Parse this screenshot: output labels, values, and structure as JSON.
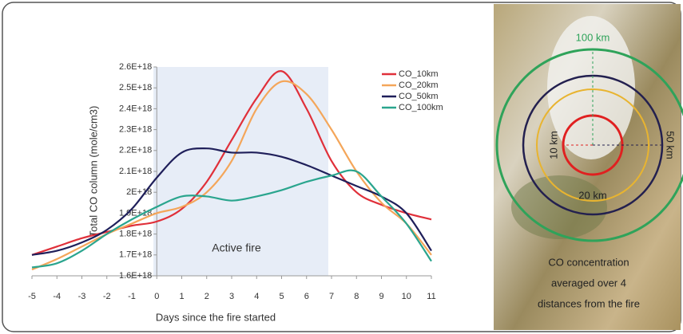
{
  "chart_data": {
    "type": "line",
    "ylabel": "Total CO column (mole/cm3)",
    "xlabel": "Days  since the fire started",
    "annotation": "Active fire",
    "x": [
      -5,
      -4,
      -3,
      -2,
      -1,
      0,
      1,
      2,
      3,
      4,
      5,
      6,
      7,
      8,
      9,
      10,
      11
    ],
    "xlim": [
      -5,
      11
    ],
    "xticks": [
      -5,
      -4,
      -3,
      -2,
      -1,
      0,
      1,
      2,
      3,
      4,
      5,
      6,
      7,
      8,
      9,
      10,
      11
    ],
    "ylim": [
      1.6e+18,
      2.6e+18
    ],
    "yticks": [
      {
        "value": 1.6e+18,
        "label": "1.6E+18"
      },
      {
        "value": 1.7e+18,
        "label": "1.7E+18"
      },
      {
        "value": 1.8e+18,
        "label": "1.8E+18"
      },
      {
        "value": 1.9e+18,
        "label": "1.9E+18"
      },
      {
        "value": 2e+18,
        "label": "2E+18"
      },
      {
        "value": 2.1e+18,
        "label": "2.1E+18"
      },
      {
        "value": 2.2e+18,
        "label": "2.2E+18"
      },
      {
        "value": 2.3e+18,
        "label": "2.3E+18"
      },
      {
        "value": 2.4e+18,
        "label": "2.4E+18"
      },
      {
        "value": 2.5e+18,
        "label": "2.5E+18"
      },
      {
        "value": 2.6e+18,
        "label": "2.6E+18"
      }
    ],
    "legend": "top-right",
    "series": [
      {
        "name": "CO_10km",
        "color": "#e0303a",
        "values": [
          1.7e+18,
          1.74e+18,
          1.78e+18,
          1.81e+18,
          1.84e+18,
          1.86e+18,
          1.92e+18,
          2.05e+18,
          2.25e+18,
          2.45e+18,
          2.58e+18,
          2.4e+18,
          2.15e+18,
          2e+18,
          1.94e+18,
          1.9e+18,
          1.87e+18
        ]
      },
      {
        "name": "CO_20km",
        "color": "#f4a65a",
        "values": [
          1.63e+18,
          1.68e+18,
          1.74e+18,
          1.8e+18,
          1.85e+18,
          1.9e+18,
          1.93e+18,
          2e+18,
          2.15e+18,
          2.4e+18,
          2.53e+18,
          2.47e+18,
          2.3e+18,
          2.1e+18,
          1.95e+18,
          1.85e+18,
          1.7e+18
        ]
      },
      {
        "name": "CO_50km",
        "color": "#1f1f5a",
        "values": [
          1.7e+18,
          1.72e+18,
          1.76e+18,
          1.82e+18,
          1.92e+18,
          2.07e+18,
          2.19e+18,
          2.21e+18,
          2.19e+18,
          2.19e+18,
          2.17e+18,
          2.13e+18,
          2.08e+18,
          2.03e+18,
          1.98e+18,
          1.9e+18,
          1.72e+18
        ]
      },
      {
        "name": "CO_100km",
        "color": "#2aa58e",
        "values": [
          1.64e+18,
          1.66e+18,
          1.72e+18,
          1.8e+18,
          1.87e+18,
          1.93e+18,
          1.98e+18,
          1.98e+18,
          1.96e+18,
          1.98e+18,
          2.01e+18,
          2.05e+18,
          2.08e+18,
          2.1e+18,
          1.98e+18,
          1.85e+18,
          1.67e+18
        ]
      }
    ]
  },
  "image": {
    "labels": [
      "100 km",
      "50 km",
      "20 km",
      "10 km"
    ],
    "caption": [
      "CO concentration",
      "averaged over 4",
      "distances from the fire"
    ]
  }
}
